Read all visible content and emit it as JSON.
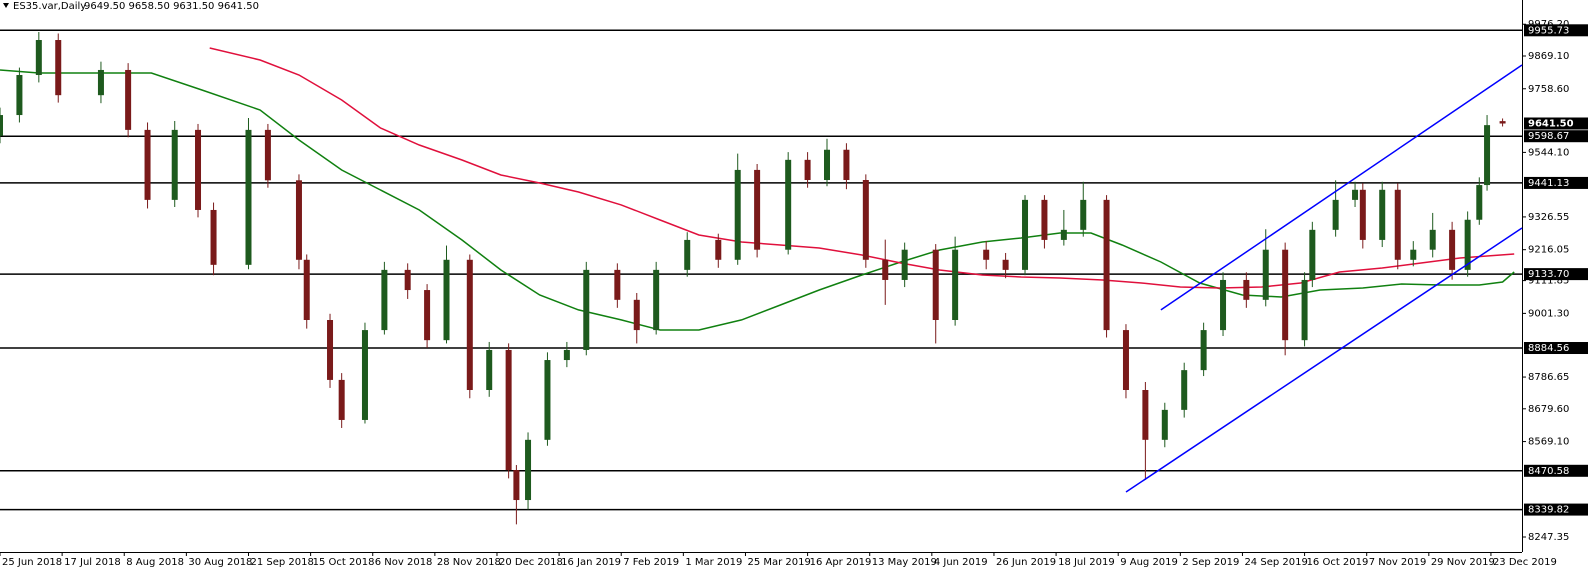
{
  "chart_data": {
    "type": "candlestick",
    "title": "ES35.var,Daily",
    "info": "9649.50 9658.50 9631.50 9641.50",
    "xlim": [
      0,
      392
    ],
    "ylim": [
      8196.8,
      10057.9
    ],
    "xticks": [
      {
        "value": 0,
        "label": "25 Jun 2018"
      },
      {
        "value": 16,
        "label": "17 Jul 2018"
      },
      {
        "value": 32,
        "label": "8 Aug 2018"
      },
      {
        "value": 48,
        "label": "30 Aug 2018"
      },
      {
        "value": 64,
        "label": "21 Sep 2018"
      },
      {
        "value": 80,
        "label": "15 Oct 2018"
      },
      {
        "value": 96,
        "label": "6 Nov 2018"
      },
      {
        "value": 112,
        "label": "28 Nov 2018"
      },
      {
        "value": 128,
        "label": "20 Dec 2018"
      },
      {
        "value": 144,
        "label": "16 Jan 2019"
      },
      {
        "value": 160,
        "label": "7 Feb 2019"
      },
      {
        "value": 176,
        "label": "1 Mar 2019"
      },
      {
        "value": 192,
        "label": "25 Mar 2019"
      },
      {
        "value": 208,
        "label": "16 Apr 2019"
      },
      {
        "value": 224,
        "label": "13 May 2019"
      },
      {
        "value": 240,
        "label": "4 Jun 2019"
      },
      {
        "value": 256,
        "label": "26 Jun 2019"
      },
      {
        "value": 272,
        "label": "18 Jul 2019"
      },
      {
        "value": 288,
        "label": "9 Aug 2019"
      },
      {
        "value": 304,
        "label": "2 Sep 2019"
      },
      {
        "value": 320,
        "label": "24 Sep 2019"
      },
      {
        "value": 336,
        "label": "16 Oct 2019"
      },
      {
        "value": 352,
        "label": "7 Nov 2019"
      },
      {
        "value": 368,
        "label": "29 Nov 2019"
      },
      {
        "value": 384,
        "label": "23 Dec 2019"
      }
    ],
    "yticks": [
      {
        "value": 9976.2,
        "label": "9976.20"
      },
      {
        "value": 9869.1,
        "label": "9869.10"
      },
      {
        "value": 9758.6,
        "label": "9758.60"
      },
      {
        "value": 9544.1,
        "label": "9544.10"
      },
      9326.55,
      9216.05,
      9111.85,
      {
        "value": 9001.3,
        "label": "9001.30"
      },
      8786.65,
      {
        "value": 8679.6,
        "label": "8679.60"
      },
      {
        "value": 8569.1,
        "label": "8569.10"
      },
      8247.35
    ],
    "up_color": "#1e5a1e",
    "down_color": "#7a1a1a",
    "candles": {
      "x": [
        0,
        5,
        10,
        15,
        26,
        33,
        38,
        45,
        51,
        55,
        64,
        69,
        77,
        79,
        85,
        88,
        94,
        99,
        105,
        110,
        115,
        121,
        126,
        131,
        133,
        136,
        141,
        146,
        151,
        159,
        164,
        169,
        177,
        185,
        190,
        195,
        203,
        208,
        213,
        218,
        223,
        228,
        233,
        241,
        246,
        254,
        259,
        264,
        269,
        274,
        279,
        285,
        290,
        295,
        300,
        305,
        310,
        315,
        321,
        326,
        331,
        336,
        338,
        344,
        349,
        351,
        356,
        360,
        364,
        369,
        374,
        378,
        381,
        383,
        387
      ],
      "open": [
        9600,
        9670,
        9805,
        9923,
        9737,
        9822,
        9620,
        9384,
        9620,
        9350,
        9165,
        9620,
        9450,
        9182,
        8979,
        8777,
        8642,
        8945,
        9148,
        9080,
        8911,
        9182,
        8743,
        8878,
        8473,
        8372,
        8575,
        8844,
        8878,
        9148,
        9047,
        8945,
        9148,
        9249,
        9182,
        9485,
        9216,
        9519,
        9451,
        9553,
        9451,
        9182,
        9114,
        9216,
        8979,
        9216,
        9182,
        9148,
        9384,
        9249,
        9283,
        9384,
        8945,
        8743,
        8575,
        8676,
        8810,
        8945,
        9114,
        9047,
        9216,
        8911,
        9114,
        9283,
        9384,
        9418,
        9249,
        9418,
        9182,
        9216,
        9283,
        9148,
        9317,
        9434,
        9649.5
      ],
      "high": [
        9695,
        9830,
        9950,
        9945,
        9850,
        9845,
        9645,
        9650,
        9640,
        9375,
        9660,
        9640,
        9470,
        9200,
        9000,
        8800,
        8970,
        9175,
        9170,
        9100,
        9230,
        9200,
        8905,
        8900,
        8490,
        8600,
        8870,
        8905,
        9175,
        9170,
        9070,
        9175,
        9275,
        9270,
        9540,
        9505,
        9545,
        9545,
        9590,
        9575,
        9470,
        9250,
        9240,
        9235,
        9260,
        9245,
        9205,
        9400,
        9400,
        9350,
        9445,
        9400,
        8965,
        8770,
        8700,
        8835,
        8970,
        9140,
        9140,
        9285,
        9240,
        9140,
        9310,
        9450,
        9445,
        9440,
        9445,
        9440,
        9245,
        9340,
        9310,
        9345,
        9460,
        9670,
        9658.5
      ],
      "low": [
        9575,
        9645,
        9780,
        9712,
        9710,
        9595,
        9355,
        9360,
        9325,
        9130,
        9150,
        9425,
        9150,
        8950,
        8750,
        8615,
        8630,
        8930,
        9050,
        8885,
        8900,
        8715,
        8720,
        8445,
        8290,
        8340,
        8555,
        8820,
        8860,
        9020,
        8900,
        8930,
        9125,
        9155,
        9165,
        9190,
        9200,
        9425,
        9430,
        9420,
        9155,
        9030,
        9090,
        8900,
        8960,
        9150,
        9120,
        9130,
        9220,
        9230,
        9260,
        8920,
        8715,
        8440,
        8550,
        8650,
        8790,
        8925,
        9020,
        9025,
        8860,
        8890,
        9090,
        9260,
        9360,
        9220,
        9225,
        9150,
        9160,
        9190,
        9115,
        9125,
        9300,
        9415,
        9631.5
      ],
      "close": [
        9670,
        9805,
        9923,
        9737,
        9822,
        9620,
        9384,
        9620,
        9350,
        9165,
        9620,
        9450,
        9182,
        8979,
        8777,
        8642,
        8945,
        9148,
        9080,
        8911,
        9182,
        8743,
        8878,
        8473,
        8372,
        8575,
        8844,
        8878,
        9148,
        9047,
        8945,
        9148,
        9249,
        9182,
        9485,
        9216,
        9519,
        9451,
        9553,
        9451,
        9182,
        9114,
        9216,
        8979,
        9216,
        9182,
        9148,
        9384,
        9249,
        9283,
        9384,
        8945,
        8743,
        8575,
        8676,
        8810,
        8945,
        9114,
        9047,
        9216,
        8911,
        9114,
        9283,
        9384,
        9418,
        9249,
        9418,
        9182,
        9216,
        9283,
        9148,
        9317,
        9434,
        9636,
        9641.5
      ]
    },
    "lines": [
      {
        "color": "#108010",
        "x": [
          0,
          10,
          39,
          52,
          67,
          77,
          88,
          98,
          108,
          119,
          129,
          139,
          149,
          160,
          170,
          180,
          191,
          201,
          211,
          222,
          232,
          242,
          253,
          263,
          273,
          281,
          289,
          299,
          309,
          320,
          330,
          340,
          351,
          361,
          371,
          381,
          387,
          390
        ],
        "values": [
          9821.9,
          9811.8,
          9811.8,
          9754.5,
          9687.0,
          9585.9,
          9484.7,
          9417.3,
          9349.9,
          9248.7,
          9147.6,
          9063.3,
          9012.9,
          8979.2,
          8945.4,
          8945.4,
          8979.2,
          9029.6,
          9080.1,
          9130.7,
          9174.6,
          9215.0,
          9242.0,
          9255.5,
          9272.3,
          9272.3,
          9231.9,
          9174.6,
          9103.7,
          9063.3,
          9056.5,
          9080.1,
          9086.9,
          9100.4,
          9097.0,
          9097.0,
          9107.1,
          9140.8
        ]
      },
      {
        "color": "#e0103c",
        "x": [
          54,
          67,
          77,
          88,
          98,
          108,
          119,
          129,
          139,
          149,
          160,
          170,
          180,
          191,
          201,
          211,
          222,
          232,
          242,
          253,
          263,
          273,
          284,
          294,
          304,
          314,
          325,
          335,
          345,
          356,
          366,
          376,
          390
        ],
        "values": [
          9896.1,
          9855.6,
          9805.0,
          9720.8,
          9626.3,
          9569.0,
          9518.5,
          9467.9,
          9440.9,
          9410.6,
          9366.9,
          9316.0,
          9265.6,
          9242.0,
          9231.9,
          9221.8,
          9198.2,
          9171.2,
          9147.6,
          9130.7,
          9124.0,
          9120.6,
          9113.9,
          9103.7,
          9090.3,
          9086.9,
          9090.3,
          9103.7,
          9140.8,
          9154.3,
          9171.2,
          9188.0,
          9201.5
        ]
      }
    ],
    "trendlines": [
      {
        "color": "#0000ff",
        "x": [
          299,
          392
        ],
        "values": [
          9012.9,
          9838.8
        ]
      },
      {
        "color": "#0000ff",
        "x": [
          290,
          392
        ],
        "values": [
          8399.1,
          9289.2
        ]
      }
    ],
    "levels": [
      9955.73,
      9598.67,
      9441.13,
      {
        "value": 9133.7,
        "label": "9133.70"
      },
      8884.56,
      8470.58,
      8339.82
    ],
    "level_color": "#000000",
    "last_price": {
      "value": 9641.5,
      "label": "9641.50"
    }
  }
}
